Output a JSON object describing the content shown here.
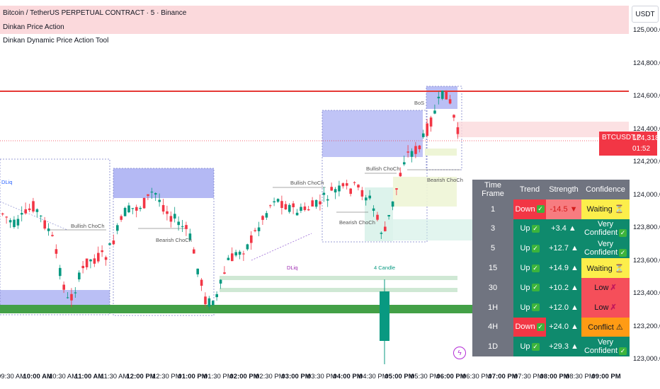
{
  "header": {
    "symbol_title": "Bitcoin / TetherUS PERPETUAL CONTRACT · 5 · Binance",
    "indicator_1": "Dinkan Price Action",
    "indicator_2": "Dinkan Dynamic Price Action Tool"
  },
  "currency_button": "USDT",
  "price_axis": [
    "125,000.0",
    "124,800.0",
    "124,600.0",
    "124,400.0",
    "124,200.0",
    "124,000.0",
    "123,800.0",
    "123,600.0",
    "123,400.0",
    "123,200.0",
    "123,000.0"
  ],
  "last_price": {
    "symbol": "BTCUSDT.P",
    "value": "124,318.1",
    "countdown": "01:52"
  },
  "time_axis": [
    {
      "label": "09:30 AM",
      "bold": false
    },
    {
      "label": "10:00 AM",
      "bold": true
    },
    {
      "label": "10:30 AM",
      "bold": false
    },
    {
      "label": "11:00 AM",
      "bold": true
    },
    {
      "label": "11:30 AM",
      "bold": false
    },
    {
      "label": "12:00 PM",
      "bold": true
    },
    {
      "label": "12:30 PM",
      "bold": false
    },
    {
      "label": "01:00 PM",
      "bold": true
    },
    {
      "label": "01:30 PM",
      "bold": false
    },
    {
      "label": "02:00 PM",
      "bold": true
    },
    {
      "label": "02:30 PM",
      "bold": false
    },
    {
      "label": "03:00 PM",
      "bold": true
    },
    {
      "label": "03:30 PM",
      "bold": false
    },
    {
      "label": "04:00 PM",
      "bold": true
    },
    {
      "label": "04:30 PM",
      "bold": false
    },
    {
      "label": "05:00 PM",
      "bold": true
    },
    {
      "label": "05:30 PM",
      "bold": false
    },
    {
      "label": "06:00 PM",
      "bold": true
    },
    {
      "label": "06:30 PM",
      "bold": false
    },
    {
      "label": "07:00 PM",
      "bold": true
    },
    {
      "label": "07:30 PM",
      "bold": false
    },
    {
      "label": "08:00 PM",
      "bold": true
    },
    {
      "label": "08:30 PM",
      "bold": false
    },
    {
      "label": "09:00 PM",
      "bold": true
    }
  ],
  "annotations": {
    "dliq_left": "DLiq",
    "bullish_choch_1": "Bullish ChoCh",
    "bearish_choch_1": "Bearish ChoCh",
    "bullish_choch_2": "Bullish ChoCh",
    "bullish_choch_3": "Bullish ChoCh",
    "bearish_choch_2": "Bearish ChoCh",
    "bearish_choch_3": "Bearish ChoCh",
    "bos": "BoS",
    "dliq_mid": "DLiq",
    "four_candle": "4 Candle"
  },
  "table": {
    "headers": [
      "Time Frame",
      "Trend",
      "Strength",
      "Confidence"
    ],
    "rows": [
      {
        "tf": "1",
        "trend": "Down",
        "strength": "-14.5 ▼",
        "confidence": "Waiting ⏳",
        "trend_type": "down",
        "strength_type": "dn",
        "conf_type": "wait"
      },
      {
        "tf": "3",
        "trend": "Up",
        "strength": "+3.4 ▲",
        "confidence": "Very Confident",
        "trend_type": "up",
        "strength_type": "up",
        "conf_type": "conf"
      },
      {
        "tf": "5",
        "trend": "Up",
        "strength": "+12.7 ▲",
        "confidence": "Very Confident",
        "trend_type": "up",
        "strength_type": "up",
        "conf_type": "conf"
      },
      {
        "tf": "15",
        "trend": "Up",
        "strength": "+14.9 ▲",
        "confidence": "Waiting ⏳",
        "trend_type": "up",
        "strength_type": "up",
        "conf_type": "wait"
      },
      {
        "tf": "30",
        "trend": "Up",
        "strength": "+10.2 ▲",
        "confidence": "Low",
        "trend_type": "up",
        "strength_type": "up",
        "conf_type": "low"
      },
      {
        "tf": "1H",
        "trend": "Up",
        "strength": "+12.0 ▲",
        "confidence": "Low",
        "trend_type": "up",
        "strength_type": "up",
        "conf_type": "low"
      },
      {
        "tf": "4H",
        "trend": "Down",
        "strength": "+24.0 ▲",
        "confidence": "Conflict ⚠",
        "trend_type": "down",
        "strength_type": "up",
        "conf_type": "conflict"
      },
      {
        "tf": "1D",
        "trend": "Up",
        "strength": "+29.3 ▲",
        "confidence": "Very Confident",
        "trend_type": "up",
        "strength_type": "up",
        "conf_type": "conf"
      }
    ]
  },
  "colors": {
    "bull": "#089981",
    "bear": "#f23645",
    "zone_blue": "#7b86f0",
    "zone_green": "#b7e1cd",
    "level_red": "#e53935",
    "level_green": "#43a047"
  }
}
